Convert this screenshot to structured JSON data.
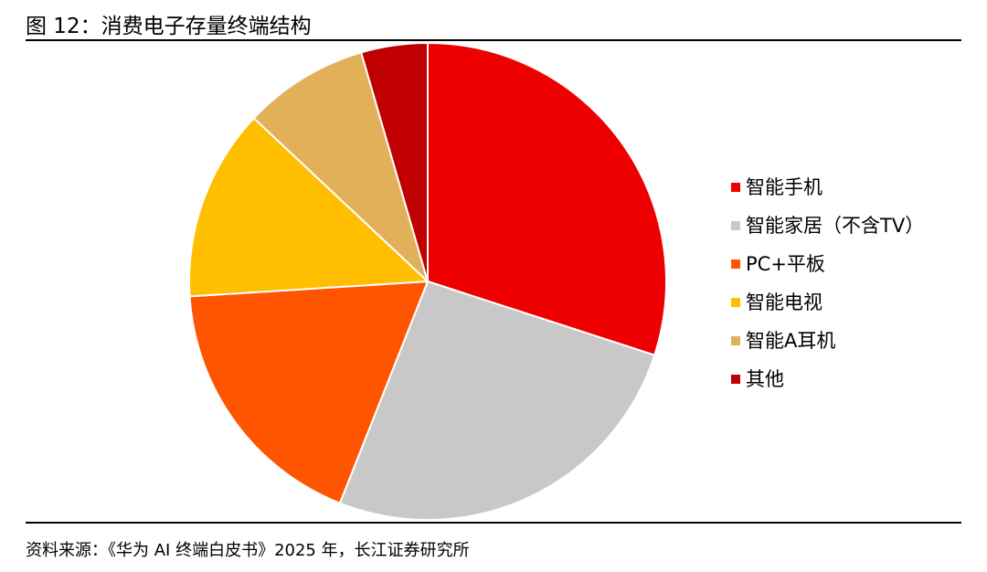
{
  "figure": {
    "title": "图 12：消费电子存量终端结构",
    "source": "资料来源：《华为 AI 终端白皮书》2025 年，长江证券研究所"
  },
  "chart_data": {
    "type": "pie",
    "title": "图 12：消费电子存量终端结构",
    "start_angle_deg": 0,
    "direction": "clockwise",
    "legend_position": "right",
    "slices": [
      {
        "label": "智能手机",
        "value": 30,
        "color": "#EE0000"
      },
      {
        "label": "智能家居（不含TV）",
        "value": 26,
        "color": "#C8C8C8"
      },
      {
        "label": "PC+平板",
        "value": 18,
        "color": "#FF5400"
      },
      {
        "label": "智能电视",
        "value": 13,
        "color": "#FFBE00"
      },
      {
        "label": "智能A耳机",
        "value": 8.5,
        "color": "#E2B058"
      },
      {
        "label": "其他",
        "value": 4.5,
        "color": "#C00000"
      }
    ]
  }
}
